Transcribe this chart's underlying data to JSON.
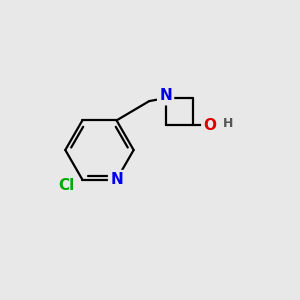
{
  "background_color": "#e8e8e8",
  "bond_color": "#000000",
  "bond_width": 1.6,
  "atom_colors": {
    "N": "#0000ee",
    "Cl": "#00aa00",
    "O": "#dd0000",
    "H": "#555555",
    "C": "#000000"
  },
  "font_size_atom": 11,
  "font_size_H": 9,
  "figsize": [
    3.0,
    3.0
  ],
  "dpi": 100
}
